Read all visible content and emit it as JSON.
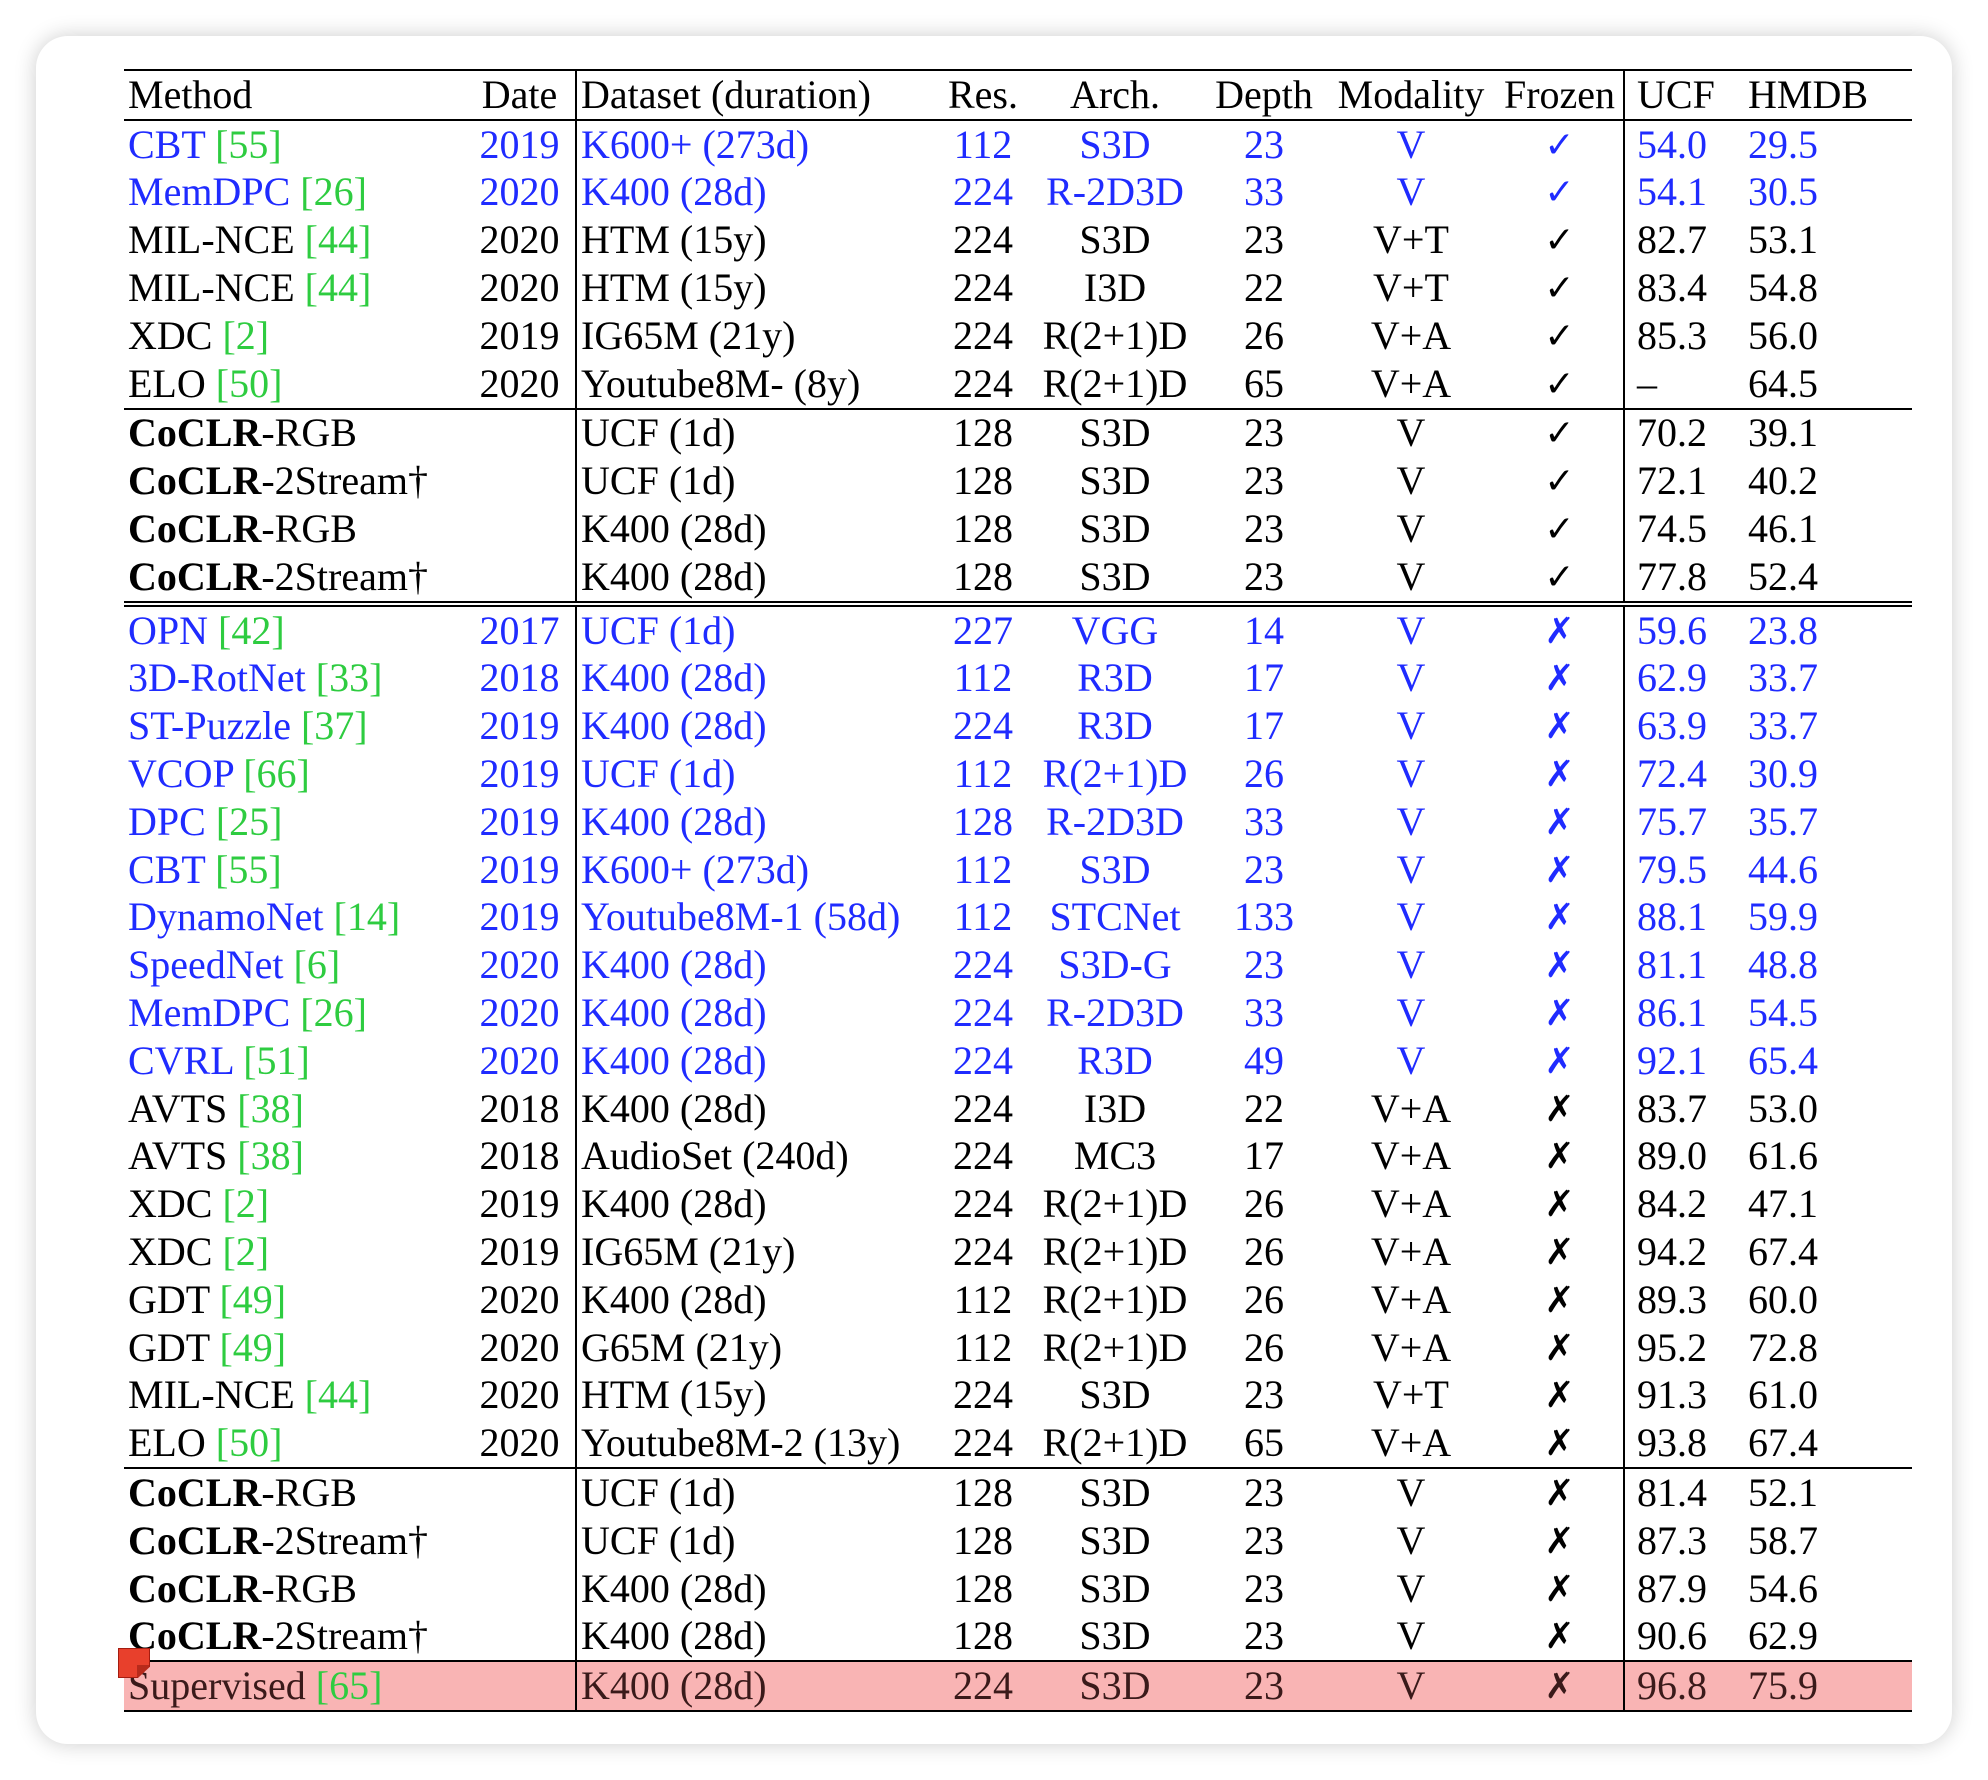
{
  "header": {
    "method": "Method",
    "date": "Date",
    "dataset": "Dataset (duration)",
    "res": "Res.",
    "arch": "Arch.",
    "depth": "Depth",
    "modality": "Modality",
    "frozen": "Frozen",
    "ucf": "UCF",
    "hmdb": "HMDB"
  },
  "marks": {
    "check": "✓",
    "cross": "✗"
  },
  "colors": {
    "prior_work_blue": "#1f2bff",
    "citation_green": "#2ecc40",
    "highlight_red": "#f9b4b4"
  },
  "sections": [
    {
      "name": "frozen-prior",
      "rows": [
        {
          "method": "CBT ",
          "ref": "[55]",
          "date": "2019",
          "dataset": "K600+ (273d)",
          "res": "112",
          "arch": "S3D",
          "depth": "23",
          "modality": "V",
          "frozen": "✓",
          "ucf": "54.0",
          "hmdb": "29.5",
          "blue": true
        },
        {
          "method": "MemDPC ",
          "ref": "[26]",
          "date": "2020",
          "dataset": "K400 (28d)",
          "res": "224",
          "arch": "R-2D3D",
          "depth": "33",
          "modality": "V",
          "frozen": "✓",
          "ucf": "54.1",
          "hmdb": "30.5",
          "blue": true
        },
        {
          "method": "MIL-NCE ",
          "ref": "[44]",
          "date": "2020",
          "dataset": "HTM (15y)",
          "res": "224",
          "arch": "S3D",
          "depth": "23",
          "modality": "V+T",
          "frozen": "✓",
          "ucf": "82.7",
          "hmdb": "53.1"
        },
        {
          "method": "MIL-NCE ",
          "ref": "[44]",
          "date": "2020",
          "dataset": "HTM (15y)",
          "res": "224",
          "arch": "I3D",
          "depth": "22",
          "modality": "V+T",
          "frozen": "✓",
          "ucf": "83.4",
          "hmdb": "54.8"
        },
        {
          "method": "XDC ",
          "ref": "[2]",
          "date": "2019",
          "dataset": "IG65M (21y)",
          "res": "224",
          "arch": "R(2+1)D",
          "depth": "26",
          "modality": "V+A",
          "frozen": "✓",
          "ucf": "85.3",
          "hmdb": "56.0"
        },
        {
          "method": "ELO ",
          "ref": "[50]",
          "date": "2020",
          "dataset": "Youtube8M- (8y)",
          "res": "224",
          "arch": "R(2+1)D",
          "depth": "65",
          "modality": "V+A",
          "frozen": "✓",
          "ucf": "–",
          "hmdb": "64.5"
        }
      ]
    },
    {
      "name": "frozen-coclr",
      "rows": [
        {
          "bold": "CoCLR",
          "suffix": "-RGB",
          "date": "",
          "dataset": "UCF (1d)",
          "res": "128",
          "arch": "S3D",
          "depth": "23",
          "modality": "V",
          "frozen": "✓",
          "ucf": "70.2",
          "hmdb": "39.1"
        },
        {
          "bold": "CoCLR",
          "suffix": "-2Stream†",
          "date": "",
          "dataset": "UCF (1d)",
          "res": "128",
          "arch": "S3D",
          "depth": "23",
          "modality": "V",
          "frozen": "✓",
          "ucf": "72.1",
          "hmdb": "40.2"
        },
        {
          "bold": "CoCLR",
          "suffix": "-RGB",
          "date": "",
          "dataset": "K400 (28d)",
          "res": "128",
          "arch": "S3D",
          "depth": "23",
          "modality": "V",
          "frozen": "✓",
          "ucf": "74.5",
          "hmdb": "46.1"
        },
        {
          "bold": "CoCLR",
          "suffix": "-2Stream†",
          "date": "",
          "dataset": "K400 (28d)",
          "res": "128",
          "arch": "S3D",
          "depth": "23",
          "modality": "V",
          "frozen": "✓",
          "ucf": "77.8",
          "hmdb": "52.4"
        }
      ]
    },
    {
      "name": "finetune-prior",
      "rows": [
        {
          "method": "OPN ",
          "ref": "[42]",
          "date": "2017",
          "dataset": "UCF (1d)",
          "res": "227",
          "arch": "VGG",
          "depth": "14",
          "modality": "V",
          "frozen": "✗",
          "ucf": "59.6",
          "hmdb": "23.8",
          "blue": true
        },
        {
          "method": "3D-RotNet ",
          "ref": "[33]",
          "date": "2018",
          "dataset": "K400 (28d)",
          "res": "112",
          "arch": "R3D",
          "depth": "17",
          "modality": "V",
          "frozen": "✗",
          "ucf": "62.9",
          "hmdb": "33.7",
          "blue": true
        },
        {
          "method": "ST-Puzzle ",
          "ref": "[37]",
          "date": "2019",
          "dataset": "K400 (28d)",
          "res": "224",
          "arch": "R3D",
          "depth": "17",
          "modality": "V",
          "frozen": "✗",
          "ucf": "63.9",
          "hmdb": "33.7",
          "blue": true
        },
        {
          "method": "VCOP ",
          "ref": "[66]",
          "date": "2019",
          "dataset": "UCF (1d)",
          "res": "112",
          "arch": "R(2+1)D",
          "depth": "26",
          "modality": "V",
          "frozen": "✗",
          "ucf": "72.4",
          "hmdb": "30.9",
          "blue": true
        },
        {
          "method": "DPC ",
          "ref": "[25]",
          "date": "2019",
          "dataset": "K400 (28d)",
          "res": "128",
          "arch": "R-2D3D",
          "depth": "33",
          "modality": "V",
          "frozen": "✗",
          "ucf": "75.7",
          "hmdb": "35.7",
          "blue": true
        },
        {
          "method": "CBT ",
          "ref": "[55]",
          "date": "2019",
          "dataset": "K600+ (273d)",
          "res": "112",
          "arch": "S3D",
          "depth": "23",
          "modality": "V",
          "frozen": "✗",
          "ucf": "79.5",
          "hmdb": "44.6",
          "blue": true
        },
        {
          "method": "DynamoNet ",
          "ref": "[14]",
          "date": "2019",
          "dataset": "Youtube8M-1 (58d)",
          "res": "112",
          "arch": "STCNet",
          "depth": "133",
          "modality": "V",
          "frozen": "✗",
          "ucf": "88.1",
          "hmdb": "59.9",
          "blue": true
        },
        {
          "method": "SpeedNet ",
          "ref": "[6]",
          "date": "2020",
          "dataset": "K400 (28d)",
          "res": "224",
          "arch": "S3D-G",
          "depth": "23",
          "modality": "V",
          "frozen": "✗",
          "ucf": "81.1",
          "hmdb": "48.8",
          "blue": true
        },
        {
          "method": "MemDPC ",
          "ref": "[26]",
          "date": "2020",
          "dataset": "K400 (28d)",
          "res": "224",
          "arch": "R-2D3D",
          "depth": "33",
          "modality": "V",
          "frozen": "✗",
          "ucf": "86.1",
          "hmdb": "54.5",
          "blue": true
        },
        {
          "method": "CVRL ",
          "ref": "[51]",
          "date": "2020",
          "dataset": "K400 (28d)",
          "res": "224",
          "arch": "R3D",
          "depth": "49",
          "modality": "V",
          "frozen": "✗",
          "ucf": "92.1",
          "hmdb": "65.4",
          "blue": true
        },
        {
          "method": "AVTS ",
          "ref": "[38]",
          "date": "2018",
          "dataset": "K400 (28d)",
          "res": "224",
          "arch": "I3D",
          "depth": "22",
          "modality": "V+A",
          "frozen": "✗",
          "ucf": "83.7",
          "hmdb": "53.0"
        },
        {
          "method": "AVTS ",
          "ref": "[38]",
          "date": "2018",
          "dataset": "AudioSet (240d)",
          "res": "224",
          "arch": "MC3",
          "depth": "17",
          "modality": "V+A",
          "frozen": "✗",
          "ucf": "89.0",
          "hmdb": "61.6"
        },
        {
          "method": "XDC ",
          "ref": "[2]",
          "date": "2019",
          "dataset": "K400 (28d)",
          "res": "224",
          "arch": "R(2+1)D",
          "depth": "26",
          "modality": "V+A",
          "frozen": "✗",
          "ucf": "84.2",
          "hmdb": "47.1"
        },
        {
          "method": "XDC ",
          "ref": "[2]",
          "date": "2019",
          "dataset": "IG65M (21y)",
          "res": "224",
          "arch": "R(2+1)D",
          "depth": "26",
          "modality": "V+A",
          "frozen": "✗",
          "ucf": "94.2",
          "hmdb": "67.4"
        },
        {
          "method": "GDT ",
          "ref": "[49]",
          "date": "2020",
          "dataset": "K400 (28d)",
          "res": "112",
          "arch": "R(2+1)D",
          "depth": "26",
          "modality": "V+A",
          "frozen": "✗",
          "ucf": "89.3",
          "hmdb": "60.0"
        },
        {
          "method": "GDT ",
          "ref": "[49]",
          "date": "2020",
          "dataset": "G65M (21y)",
          "res": "112",
          "arch": "R(2+1)D",
          "depth": "26",
          "modality": "V+A",
          "frozen": "✗",
          "ucf": "95.2",
          "hmdb": "72.8"
        },
        {
          "method": "MIL-NCE ",
          "ref": "[44]",
          "date": "2020",
          "dataset": "HTM (15y)",
          "res": "224",
          "arch": "S3D",
          "depth": "23",
          "modality": "V+T",
          "frozen": "✗",
          "ucf": "91.3",
          "hmdb": "61.0"
        },
        {
          "method": "ELO ",
          "ref": "[50]",
          "date": "2020",
          "dataset": "Youtube8M-2 (13y)",
          "res": "224",
          "arch": "R(2+1)D",
          "depth": "65",
          "modality": "V+A",
          "frozen": "✗",
          "ucf": "93.8",
          "hmdb": "67.4"
        }
      ]
    },
    {
      "name": "finetune-coclr",
      "rows": [
        {
          "bold": "CoCLR",
          "suffix": "-RGB",
          "date": "",
          "dataset": "UCF (1d)",
          "res": "128",
          "arch": "S3D",
          "depth": "23",
          "modality": "V",
          "frozen": "✗",
          "ucf": "81.4",
          "hmdb": "52.1"
        },
        {
          "bold": "CoCLR",
          "suffix": "-2Stream†",
          "date": "",
          "dataset": "UCF (1d)",
          "res": "128",
          "arch": "S3D",
          "depth": "23",
          "modality": "V",
          "frozen": "✗",
          "ucf": "87.3",
          "hmdb": "58.7"
        },
        {
          "bold": "CoCLR",
          "suffix": "-RGB",
          "date": "",
          "dataset": "K400 (28d)",
          "res": "128",
          "arch": "S3D",
          "depth": "23",
          "modality": "V",
          "frozen": "✗",
          "ucf": "87.9",
          "hmdb": "54.6"
        },
        {
          "bold": "CoCLR",
          "suffix": "-2Stream†",
          "date": "",
          "dataset": "K400 (28d)",
          "res": "128",
          "arch": "S3D",
          "depth": "23",
          "modality": "V",
          "frozen": "✗",
          "ucf": "90.6",
          "hmdb": "62.9"
        }
      ]
    },
    {
      "name": "supervised",
      "rows": [
        {
          "method": "Supervised ",
          "ref": "[65]",
          "date": "",
          "dataset": "K400 (28d)",
          "res": "224",
          "arch": "S3D",
          "depth": "23",
          "modality": "V",
          "frozen": "✗",
          "ucf": "96.8",
          "hmdb": "75.9",
          "highlight": true
        }
      ]
    }
  ]
}
